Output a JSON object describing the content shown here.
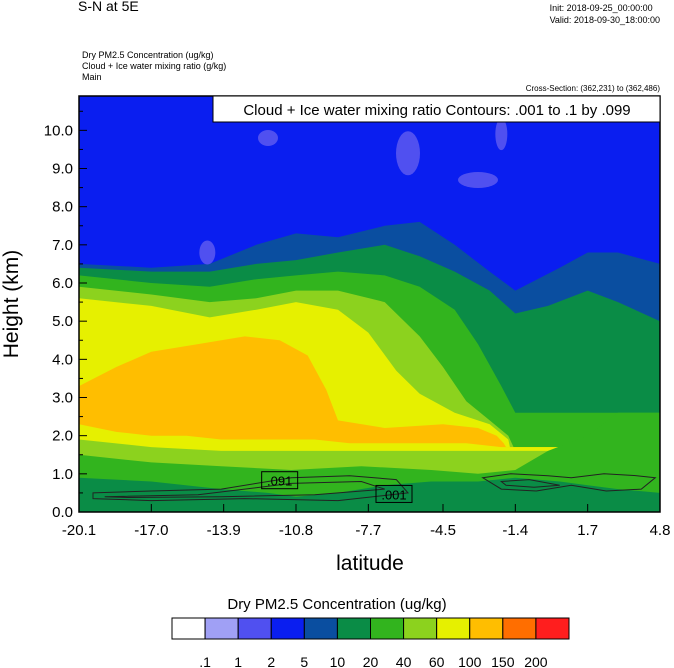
{
  "header": {
    "title": "S-N at 5E",
    "init": "Init: 2018-09-25_00:00:00",
    "valid": "Valid: 2018-09-30_18:00:00",
    "field_lines": [
      "Dry PM2.5 Concentration   (ug/kg)",
      "Cloud + Ice water mixing ratio   (g/kg)",
      "Main"
    ],
    "cross_section": "Cross-Section: (362,231) to (362,486)"
  },
  "chart_data": {
    "type": "heatmap",
    "title": "S-N at 5E",
    "xlabel": "latitude",
    "ylabel": "Height (km)",
    "xlim": [
      -20.1,
      4.8
    ],
    "ylim": [
      0.0,
      10.9
    ],
    "x_ticks": [
      "-20.1",
      "-17.0",
      "-13.9",
      "-10.8",
      "-7.7",
      "-4.5",
      "-1.4",
      "1.7",
      "4.8"
    ],
    "y_ticks": [
      "0.0",
      "1.0",
      "2.0",
      "3.0",
      "4.0",
      "5.0",
      "6.0",
      "7.0",
      "8.0",
      "9.0",
      "10.0"
    ],
    "contour_annotation": "Cloud + Ice water mixing ratio Contours: .001 to .1 by .099",
    "contour_labels": [
      ".091",
      ".001"
    ],
    "colorbar": {
      "title": "Dry PM2.5 Concentration  (ug/kg)",
      "labels": [
        ".1",
        "1",
        "2",
        "5",
        "10",
        "20",
        "40",
        "60",
        "100",
        "150",
        "200"
      ],
      "colors": [
        "#ffffff",
        "#a0a0f5",
        "#5050f0",
        "#0a1ef0",
        "#0a4ea0",
        "#0a8c46",
        "#32b41e",
        "#8cd21e",
        "#e6f000",
        "#ffbe00",
        "#ff6e00",
        "#ff1e1e"
      ]
    },
    "levels": [
      {
        "level": "5-10",
        "color": "#0a4ea0",
        "top": [
          [
            -20.1,
            6.5
          ],
          [
            -17.0,
            6.4
          ],
          [
            -14.5,
            6.5
          ],
          [
            -12.5,
            7.0
          ],
          [
            -10.8,
            7.3
          ],
          [
            -9.0,
            7.2
          ],
          [
            -7.0,
            7.5
          ],
          [
            -5.5,
            7.6
          ],
          [
            -4.0,
            7.0
          ],
          [
            -2.5,
            6.3
          ],
          [
            -1.4,
            5.8
          ],
          [
            0.5,
            6.4
          ],
          [
            1.7,
            6.8
          ],
          [
            3.0,
            6.8
          ],
          [
            4.8,
            6.5
          ]
        ]
      },
      {
        "level": "10-20",
        "color": "#0a8c46",
        "top": [
          [
            -20.1,
            6.4
          ],
          [
            -17.0,
            6.3
          ],
          [
            -14.5,
            6.3
          ],
          [
            -12.5,
            6.5
          ],
          [
            -10.8,
            6.6
          ],
          [
            -9.0,
            6.8
          ],
          [
            -7.0,
            7.0
          ],
          [
            -5.5,
            6.7
          ],
          [
            -4.0,
            6.3
          ],
          [
            -2.5,
            5.8
          ],
          [
            -1.4,
            5.2
          ],
          [
            0.0,
            5.4
          ],
          [
            1.7,
            5.8
          ],
          [
            3.0,
            5.5
          ],
          [
            4.8,
            5.0
          ]
        ]
      },
      {
        "level": "20-40",
        "color": "#32b41e",
        "top": [
          [
            -20.1,
            6.2
          ],
          [
            -17.0,
            6.0
          ],
          [
            -14.5,
            5.9
          ],
          [
            -12.5,
            6.1
          ],
          [
            -10.8,
            6.2
          ],
          [
            -9.0,
            6.3
          ],
          [
            -7.0,
            6.2
          ],
          [
            -5.5,
            5.9
          ],
          [
            -4.0,
            5.3
          ],
          [
            -3.0,
            4.4
          ],
          [
            -2.0,
            3.3
          ],
          [
            -1.4,
            2.6
          ],
          [
            4.8,
            2.6
          ]
        ]
      },
      {
        "level": "40-60",
        "color": "#8cd21e",
        "top": [
          [
            -20.1,
            5.9
          ],
          [
            -17.0,
            5.7
          ],
          [
            -14.5,
            5.5
          ],
          [
            -12.5,
            5.6
          ],
          [
            -10.8,
            5.8
          ],
          [
            -9.0,
            5.8
          ],
          [
            -7.0,
            5.5
          ],
          [
            -5.5,
            4.6
          ],
          [
            -4.5,
            3.8
          ],
          [
            -3.5,
            2.9
          ],
          [
            -2.5,
            2.4
          ],
          [
            -1.7,
            2.0
          ],
          [
            -1.4,
            1.6
          ],
          [
            4.8,
            1.6
          ]
        ]
      },
      {
        "level": "60-100",
        "color": "#e6f000",
        "top": [
          [
            -20.1,
            5.6
          ],
          [
            -17.0,
            5.4
          ],
          [
            -14.5,
            5.1
          ],
          [
            -12.5,
            5.3
          ],
          [
            -10.8,
            5.5
          ],
          [
            -9.0,
            5.3
          ],
          [
            -7.7,
            4.7
          ],
          [
            -6.5,
            3.7
          ],
          [
            -5.5,
            3.1
          ],
          [
            -4.0,
            2.6
          ],
          [
            -2.5,
            2.3
          ],
          [
            -1.7,
            1.9
          ],
          [
            -1.6,
            1.6
          ],
          [
            4.8,
            1.6
          ]
        ]
      },
      {
        "level": "100-150",
        "color": "#ffbe00",
        "top": [
          [
            -20.1,
            3.3
          ],
          [
            -18.5,
            3.8
          ],
          [
            -17.0,
            4.2
          ],
          [
            -15.0,
            4.4
          ],
          [
            -13.0,
            4.6
          ],
          [
            -11.5,
            4.5
          ],
          [
            -10.3,
            4.1
          ],
          [
            -9.5,
            3.2
          ],
          [
            -9.0,
            2.4
          ],
          [
            -7.0,
            2.2
          ],
          [
            -4.5,
            2.3
          ],
          [
            -3.0,
            2.2
          ],
          [
            -2.2,
            2.0
          ],
          [
            -1.9,
            1.8
          ],
          [
            -1.8,
            1.7
          ],
          [
            4.8,
            1.7
          ]
        ]
      },
      {
        "level": "60-100-lower",
        "color": "#e6f000",
        "top": [
          [
            -20.1,
            2.3
          ],
          [
            -18.5,
            2.1
          ],
          [
            -17.0,
            2.0
          ],
          [
            -15.5,
            2.0
          ],
          [
            -14.0,
            1.9
          ],
          [
            -12.0,
            1.9
          ],
          [
            -10.0,
            1.9
          ],
          [
            -8.5,
            1.8
          ],
          [
            -6.0,
            1.8
          ],
          [
            -3.5,
            1.8
          ],
          [
            -2.0,
            1.7
          ],
          [
            4.8,
            1.7
          ]
        ]
      },
      {
        "level": "40-60-lower",
        "color": "#8cd21e",
        "top": [
          [
            -20.1,
            1.9
          ],
          [
            -17.0,
            1.7
          ],
          [
            -14.0,
            1.6
          ],
          [
            -12.0,
            1.6
          ],
          [
            -10.0,
            1.6
          ],
          [
            -8.0,
            1.6
          ],
          [
            -5.0,
            1.6
          ],
          [
            -1.4,
            1.6
          ],
          [
            4.8,
            1.6
          ]
        ]
      },
      {
        "level": "20-40-lower",
        "color": "#32b41e",
        "top": [
          [
            -20.1,
            1.5
          ],
          [
            -17.0,
            1.3
          ],
          [
            -14.0,
            1.2
          ],
          [
            -11.0,
            1.1
          ],
          [
            -8.0,
            1.2
          ],
          [
            -5.0,
            1.1
          ],
          [
            -3.0,
            1.0
          ],
          [
            -1.4,
            1.1
          ],
          [
            0.0,
            1.6
          ],
          [
            1.7,
            2.0
          ],
          [
            3.0,
            2.6
          ],
          [
            4.8,
            2.6
          ]
        ]
      },
      {
        "level": "10-20-lower",
        "color": "#0a8c46",
        "top": [
          [
            -20.1,
            0.9
          ],
          [
            -17.0,
            0.8
          ],
          [
            -14.0,
            0.6
          ],
          [
            -12.0,
            0.5
          ],
          [
            -10.8,
            0.4
          ],
          [
            -9.0,
            0.5
          ],
          [
            -7.0,
            0.7
          ],
          [
            -5.0,
            0.8
          ],
          [
            -3.0,
            0.8
          ],
          [
            -1.4,
            0.9
          ],
          [
            0.5,
            0.8
          ],
          [
            1.7,
            0.7
          ],
          [
            3.0,
            0.6
          ],
          [
            4.8,
            0.5
          ]
        ]
      }
    ]
  }
}
